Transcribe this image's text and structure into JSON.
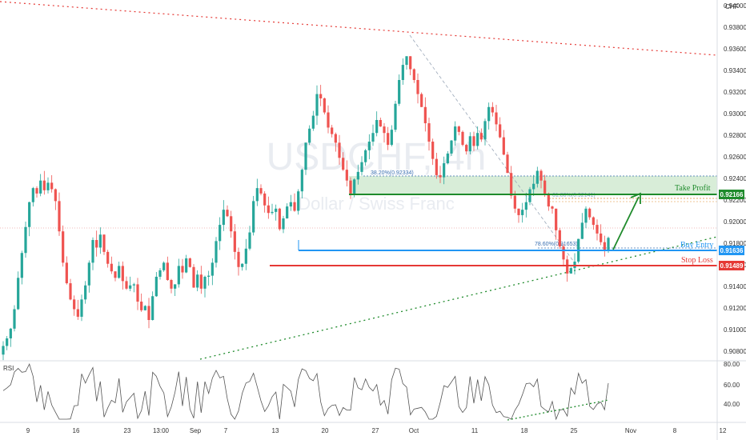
{
  "watermark": {
    "symbol": "USDCHF, 4h",
    "name": "Dollar / Swiss Franc"
  },
  "currency": "CHF",
  "rsi_label": "RSI",
  "colors": {
    "up": "#26a69a",
    "down": "#ef5350",
    "green": "#1f8b2c",
    "blue": "#2196f3",
    "red": "#e53935"
  },
  "chart_data": {
    "type": "candlestick",
    "price_ticks": [
      "0.94000",
      "0.93800",
      "0.93600",
      "0.93400",
      "0.93200",
      "0.93000",
      "0.92800",
      "0.92600",
      "0.92400",
      "0.92200",
      "0.92000",
      "0.91800",
      "0.91600",
      "0.91400",
      "0.91200",
      "0.91000",
      "0.90800"
    ],
    "ylim": [
      0.9072,
      0.9405
    ],
    "time_ticks": [
      "9",
      "16",
      "23",
      "13:00",
      "Sep",
      "7",
      "13",
      "20",
      "27",
      "Oct",
      "11",
      "18",
      "25",
      "Nov",
      "8",
      "12"
    ],
    "rsi_ticks": [
      "80.00",
      "60.00",
      "40.00"
    ],
    "levels": {
      "take_profit": {
        "label": "Take Profit",
        "value": "0.92166"
      },
      "buy_entry": {
        "label": "Buy Entry",
        "value": "0.91636"
      },
      "stop_loss": {
        "label": "Stop Loss",
        "value": "0.91489"
      }
    },
    "fib_labels": [
      "38.20%(0.92334)",
      "78.60%(0.91653)",
      "61.80%(0.92141)"
    ],
    "close_series": [
      0.9085,
      0.9092,
      0.9101,
      0.9119,
      0.9148,
      0.9171,
      0.9195,
      0.9218,
      0.9231,
      0.9226,
      0.9238,
      0.9229,
      0.9236,
      0.923,
      0.9219,
      0.9191,
      0.9162,
      0.9143,
      0.9128,
      0.9119,
      0.9112,
      0.9128,
      0.9141,
      0.9162,
      0.9183,
      0.9176,
      0.9188,
      0.9172,
      0.9161,
      0.9154,
      0.9148,
      0.9159,
      0.9145,
      0.9138,
      0.9141,
      0.9142,
      0.9126,
      0.9118,
      0.9122,
      0.9109,
      0.9131,
      0.9149,
      0.9155,
      0.9162,
      0.9146,
      0.9138,
      0.9142,
      0.9159,
      0.9153,
      0.9166,
      0.9158,
      0.9139,
      0.9151,
      0.9138,
      0.9149,
      0.915,
      0.9162,
      0.9182,
      0.9197,
      0.9211,
      0.9205,
      0.9191,
      0.9172,
      0.9158,
      0.9161,
      0.9175,
      0.919,
      0.9219,
      0.9231,
      0.9226,
      0.9215,
      0.9208,
      0.9209,
      0.9212,
      0.9193,
      0.9203,
      0.9214,
      0.9218,
      0.921,
      0.9228,
      0.9248,
      0.9273,
      0.9286,
      0.9298,
      0.9318,
      0.9314,
      0.9301,
      0.9287,
      0.9281,
      0.9273,
      0.9259,
      0.9248,
      0.9238,
      0.9226,
      0.9239,
      0.9246,
      0.9255,
      0.9266,
      0.9274,
      0.9282,
      0.9294,
      0.9288,
      0.9282,
      0.9271,
      0.9285,
      0.9309,
      0.9331,
      0.9345,
      0.9353,
      0.9341,
      0.9331,
      0.9318,
      0.9306,
      0.9291,
      0.9274,
      0.9258,
      0.9243,
      0.9241,
      0.9254,
      0.9263,
      0.9275,
      0.9288,
      0.9283,
      0.9271,
      0.9265,
      0.9279,
      0.927,
      0.9282,
      0.9276,
      0.9293,
      0.9306,
      0.9301,
      0.929,
      0.9278,
      0.9262,
      0.9245,
      0.9224,
      0.9212,
      0.9206,
      0.9211,
      0.9218,
      0.923,
      0.9235,
      0.9247,
      0.9238,
      0.9226,
      0.9214,
      0.9212,
      0.9192,
      0.9177,
      0.9165,
      0.9152,
      0.9157,
      0.9163,
      0.9184,
      0.9199,
      0.9212,
      0.9204,
      0.9197,
      0.9189,
      0.9181,
      0.9174,
      0.9185
    ]
  }
}
